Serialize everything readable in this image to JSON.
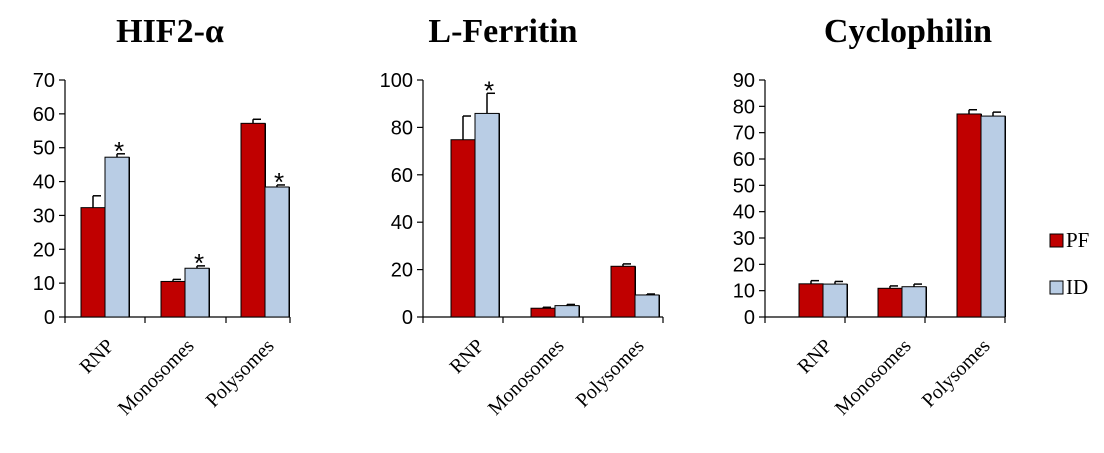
{
  "chart_data": [
    {
      "type": "bar",
      "title": "HIF2-α",
      "categories": [
        "RNP",
        "Monosomes",
        "Polysomes"
      ],
      "ylim": [
        0,
        70
      ],
      "yticks": [
        0,
        10,
        20,
        30,
        40,
        50,
        60,
        70
      ],
      "series": [
        {
          "name": "PF",
          "values": [
            32.3,
            10.5,
            57.2
          ],
          "errors": [
            3.5,
            0.6,
            1.2
          ]
        },
        {
          "name": "ID",
          "values": [
            47.2,
            14.4,
            38.4
          ],
          "errors": [
            1.0,
            0.7,
            0.6
          ]
        }
      ],
      "significance": [
        {
          "category": "RNP",
          "series": "ID",
          "label": "*"
        },
        {
          "category": "Monosomes",
          "series": "ID",
          "label": "*"
        },
        {
          "category": "Polysomes",
          "series": "ID",
          "label": "*"
        }
      ]
    },
    {
      "type": "bar",
      "title": "L-Ferritin",
      "categories": [
        "RNP",
        "Monosomes",
        "Polysomes"
      ],
      "ylim": [
        0,
        100
      ],
      "yticks": [
        0,
        20,
        40,
        60,
        80,
        100
      ],
      "series": [
        {
          "name": "PF",
          "values": [
            74.8,
            3.7,
            21.4
          ],
          "errors": [
            10.0,
            0.4,
            1.0
          ]
        },
        {
          "name": "ID",
          "values": [
            85.9,
            4.8,
            9.3
          ],
          "errors": [
            8.5,
            0.5,
            0.4
          ]
        }
      ],
      "significance": [
        {
          "category": "RNP",
          "series": "ID",
          "label": "*"
        }
      ]
    },
    {
      "type": "bar",
      "title": "Cyclophilin",
      "categories": [
        "RNP",
        "Monosomes",
        "Polysomes"
      ],
      "ylim": [
        0,
        90
      ],
      "yticks": [
        0,
        10,
        20,
        30,
        40,
        50,
        60,
        70,
        80,
        90
      ],
      "series": [
        {
          "name": "PF",
          "values": [
            12.6,
            10.9,
            77.1
          ],
          "errors": [
            1.2,
            0.9,
            1.6
          ]
        },
        {
          "name": "ID",
          "values": [
            12.5,
            11.5,
            76.3
          ],
          "errors": [
            1.0,
            1.0,
            1.5
          ]
        }
      ],
      "significance": []
    }
  ],
  "legend": {
    "position": "right",
    "items": [
      {
        "label": "PF",
        "color": "#C00000"
      },
      {
        "label": "ID",
        "color": "#B9CDE5"
      }
    ]
  },
  "colors": {
    "PF": "#C00000",
    "ID": "#B9CDE5",
    "bar_edge": "#000000"
  }
}
